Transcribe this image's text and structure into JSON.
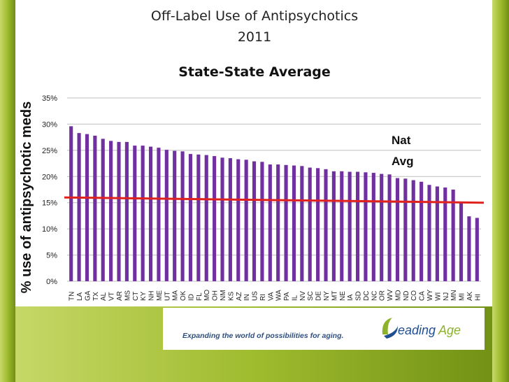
{
  "slide": {
    "title_line1": "Off-Label Use of Antipsychotics",
    "title_line2": "2011",
    "subtitle": "State-State Average",
    "footer_tagline": "Expanding the world of possibilities for aging.",
    "logo_text": "LeadingAge"
  },
  "colors": {
    "bar": "#7030A0",
    "avg_line": "#E0221E",
    "background_green": "#9CB82A"
  },
  "chart_data": {
    "type": "bar",
    "title": "State-State Average",
    "ylabel": "% use of antipsychotic meds",
    "ylim": [
      0,
      35
    ],
    "yticks": [
      "0%",
      "5%",
      "10%",
      "15%",
      "20%",
      "25%",
      "30%",
      "35%"
    ],
    "grid": true,
    "categories": [
      "TN",
      "LA",
      "GA",
      "TX",
      "AL",
      "VT",
      "AR",
      "MS",
      "CT",
      "KY",
      "NH",
      "ME",
      "UT",
      "MA",
      "OK",
      "ID",
      "FL",
      "MO",
      "OH",
      "NM",
      "KS",
      "AZ",
      "IN",
      "US",
      "RI",
      "VA",
      "WA",
      "PA",
      "IL",
      "NV",
      "SC",
      "DE",
      "NY",
      "MT",
      "NE",
      "IA",
      "SD",
      "DC",
      "NC",
      "OR",
      "WV",
      "MD",
      "ND",
      "CO",
      "CA",
      "WY",
      "WI",
      "NJ",
      "MN",
      "MI",
      "AK",
      "HI"
    ],
    "values": [
      29.6,
      28.3,
      28.1,
      27.8,
      27.2,
      26.8,
      26.6,
      26.6,
      25.9,
      25.9,
      25.7,
      25.5,
      25.1,
      24.9,
      24.8,
      24.3,
      24.2,
      24.1,
      23.9,
      23.6,
      23.5,
      23.3,
      23.2,
      22.9,
      22.8,
      22.3,
      22.3,
      22.2,
      22.1,
      22.0,
      21.7,
      21.6,
      21.4,
      21.0,
      21.0,
      20.9,
      20.9,
      20.8,
      20.7,
      20.5,
      20.4,
      19.7,
      19.6,
      19.3,
      19.0,
      18.4,
      18.1,
      17.9,
      17.5,
      15.1,
      12.4,
      12.1
    ],
    "reference_line": {
      "label_line1": "Nat",
      "label_line2": "Avg",
      "start": 16.0,
      "end": 15.0
    }
  }
}
